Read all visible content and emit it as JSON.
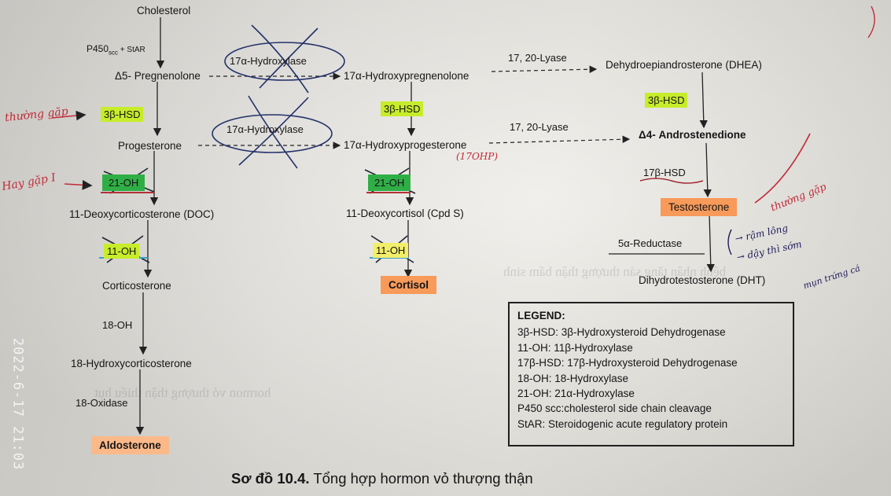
{
  "nodes": {
    "cholesterol": "Cholesterol",
    "pregnenolone": "Δ5- Pregnenolone",
    "progesterone": "Progesterone",
    "doc": "11-Deoxycorticosterone (DOC)",
    "corticosterone": "Corticosterone",
    "hydroxycorticosterone": "18-Hydroxycorticosterone",
    "aldosterone": "Aldosterone",
    "hydroxypregnenolone": "17α-Hydroxypregnenolone",
    "hydroxyprogesterone": "17α-Hydroxyprogesterone",
    "deoxycortisol": "11-Deoxycortisol (Cpd S)",
    "cortisol": "Cortisol",
    "dhea": "Dehydroepiandrosterone (DHEA)",
    "androstenedione": "Δ4- Androstenedione",
    "testosterone": "Testosterone",
    "dht": "Dihydrotestosterone (DHT)"
  },
  "enzymes": {
    "p450_scc": "P450",
    "p450_sub": "scc",
    "p450_star": " + StAR",
    "hsd3_a": "3β-HSD",
    "hsd3_b": "3β-HSD",
    "hsd3_c": "3β-HSD",
    "hydroxylase21_a": "21-OH",
    "hydroxylase21_b": "21-OH",
    "hydroxylase11_a": "11-OH",
    "hydroxylase11_b": "11-OH",
    "hydroxylase18": "18-OH",
    "oxidase18": "18-Oxidase",
    "hydroxylase17_a": "17α-Hydroxylase",
    "hydroxylase17_b": "17α-Hydroxylase",
    "lyase_a": "17, 20-Lyase",
    "lyase_b": "17, 20-Lyase",
    "hsd17": "17β-HSD",
    "reductase5a": "5α-Reductase"
  },
  "legend": {
    "title": "LEGEND:",
    "items": [
      "3β-HSD: 3β-Hydroxysteroid Dehydrogenase",
      "11-OH: 11β-Hydroxylase",
      "17β-HSD: 17β-Hydroxysteroid Dehydrogenase",
      "18-OH: 18-Hydroxylase",
      "21-OH: 21α-Hydroxylase",
      "P450 scc:cholesterol side chain cleavage",
      "StAR: Steroidogenic acute regulatory protein"
    ]
  },
  "caption": {
    "label": "Sơ đồ 10.4.",
    "text": " Tổng hợp hormon vỏ thượng thận"
  },
  "timestamp": "2022-6-17 21:03",
  "annotations": {
    "left_1": "thường gặp",
    "left_2": "Hay gặp I",
    "ohp": "(17OHP)",
    "right_red": "thường gặp",
    "right_blue_1": "→ rậm lông",
    "right_blue_2": "→ dậy thì sớm",
    "right_blue_3": "mụn trứng cá"
  },
  "colors": {
    "highlight_green": "#c7ec2a",
    "highlight_green_dark": "#2fae46",
    "highlight_orange": "#f79a5a",
    "ink_red": "#c12a3a",
    "ink_blue": "#1d1b5a"
  }
}
